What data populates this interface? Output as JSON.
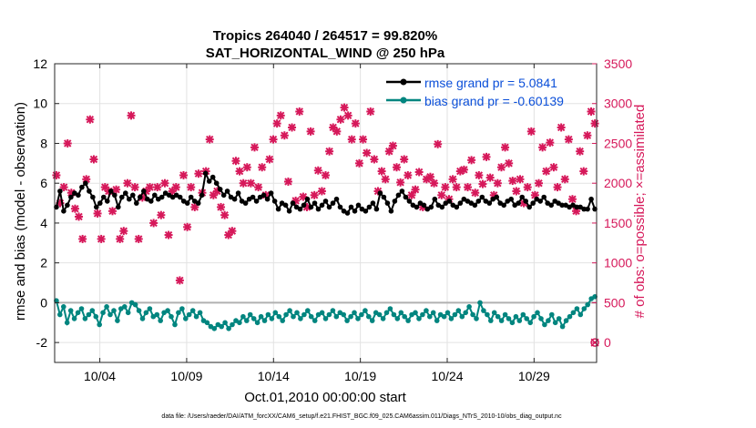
{
  "chart_data": {
    "type": "line",
    "title": "Tropics 264040 / 264517 = 99.820%",
    "subtitle": "SAT_HORIZONTAL_WIND @ 250 hPa",
    "xlabel": "Oct.01,2010 00:00:00 start",
    "ylabel_left": "rmse and bias (model - observation)",
    "ylabel_right": "# of obs: o=possible; ×=assimilated",
    "footer": "data file: /Users/raeder/DAI/ATM_forcXX/CAM6_setup/f.e21.FHIST_BGC.f09_025.CAM6assim.011/Diags_NTrS_2010-10/obs_diag_output.nc",
    "xlim": [
      1.4,
      32.6
    ],
    "ylim_left": [
      -3,
      12
    ],
    "ylim_right": [
      -250,
      3500
    ],
    "x_ticks": [
      4,
      9,
      14,
      19,
      24,
      29
    ],
    "x_tick_labels": [
      "10/04",
      "10/09",
      "10/14",
      "10/19",
      "10/24",
      "10/29"
    ],
    "y_ticks_left": [
      "-2",
      "0",
      "2",
      "4",
      "6",
      "8",
      "10",
      "12"
    ],
    "y_ticks_right": [
      "0",
      "500",
      "1000",
      "1500",
      "2000",
      "2500",
      "3000",
      "3500"
    ],
    "grid": true,
    "legend_position": "top-right",
    "series": [
      {
        "name": "rmse grand pr = 5.0841",
        "color": "#000000",
        "marker": "circle",
        "axis": "left",
        "values": [
          4.8,
          5.6,
          4.6,
          4.9,
          5.3,
          5.5,
          5.4,
          5.8,
          6.0,
          5.6,
          5.3,
          4.8,
          5.0,
          5.3,
          5.1,
          5.6,
          5.4,
          4.8,
          5.3,
          5.5,
          5.2,
          5.4,
          5.0,
          5.3,
          5.6,
          5.2,
          5.1,
          5.4,
          5.2,
          5.3,
          5.5,
          5.4,
          5.3,
          5.4,
          5.3,
          5.1,
          5.0,
          5.3,
          5.1,
          5.0,
          5.4,
          6.5,
          6.1,
          6.3,
          6.0,
          5.7,
          5.4,
          5.6,
          5.3,
          5.2,
          5.5,
          5.1,
          5.0,
          5.2,
          5.3,
          5.1,
          5.3,
          5.4,
          5.2,
          5.5,
          5.1,
          4.7,
          5.0,
          4.9,
          4.6,
          5.0,
          4.8,
          4.7,
          4.9,
          5.2,
          4.8,
          5.0,
          4.7,
          4.9,
          5.1,
          4.8,
          5.0,
          5.2,
          4.8,
          4.6,
          4.5,
          4.8,
          4.6,
          4.9,
          4.7,
          4.6,
          4.8,
          5.0,
          4.7,
          5.5,
          5.3,
          5.0,
          4.6,
          5.1,
          5.4,
          5.6,
          5.3,
          5.1,
          4.9,
          4.8,
          5.0,
          4.9,
          4.7,
          4.8,
          5.2,
          4.9,
          4.8,
          5.0,
          5.1,
          4.9,
          4.8,
          5.0,
          5.2,
          5.1,
          5.0,
          4.9,
          5.1,
          5.3,
          5.1,
          5.0,
          5.2,
          5.3,
          5.0,
          4.9,
          5.1,
          5.2,
          4.9,
          5.0,
          5.3,
          5.1,
          4.8,
          5.0,
          5.2,
          5.1,
          5.3,
          5.0,
          4.9,
          5.1,
          5.0,
          4.9,
          4.9,
          4.8,
          4.9,
          4.8,
          4.8,
          4.7,
          4.7,
          5.2,
          4.7
        ]
      },
      {
        "name": "bias grand pr = -0.60139",
        "color": "#00857f",
        "marker": "circle",
        "axis": "left",
        "values": [
          0.1,
          -0.6,
          -0.2,
          -1.0,
          -0.4,
          -0.8,
          -0.5,
          -0.3,
          -0.8,
          -0.6,
          -0.4,
          -0.7,
          -1.1,
          -0.5,
          -0.2,
          -0.6,
          -0.4,
          -0.9,
          -0.3,
          -0.2,
          -0.5,
          0.0,
          -0.1,
          -0.4,
          -0.8,
          -0.5,
          -0.3,
          -0.7,
          -0.6,
          -0.9,
          -0.5,
          -0.4,
          -0.7,
          -1.1,
          -0.5,
          -0.3,
          -0.8,
          -0.6,
          -0.4,
          -0.7,
          -0.5,
          -0.9,
          -1.0,
          -1.2,
          -1.3,
          -1.1,
          -1.2,
          -1.0,
          -1.3,
          -1.1,
          -0.9,
          -1.0,
          -0.7,
          -0.9,
          -0.6,
          -0.8,
          -1.0,
          -0.7,
          -0.9,
          -0.6,
          -0.8,
          -0.5,
          -0.7,
          -0.9,
          -0.6,
          -0.4,
          -0.7,
          -0.5,
          -0.8,
          -0.6,
          -0.4,
          -0.7,
          -0.9,
          -0.6,
          -0.5,
          -0.8,
          -0.6,
          -0.4,
          -0.7,
          -0.5,
          -0.6,
          -0.9,
          -0.7,
          -0.5,
          -0.8,
          -0.6,
          -0.4,
          -0.7,
          -0.9,
          -0.5,
          -0.6,
          -0.8,
          -0.5,
          -0.3,
          -0.6,
          -0.8,
          -0.5,
          -0.7,
          -0.9,
          -0.6,
          -0.5,
          -0.8,
          -0.6,
          -0.4,
          -0.7,
          -0.5,
          -0.9,
          -0.6,
          -0.7,
          -0.5,
          -0.8,
          -0.6,
          -0.4,
          -0.7,
          -0.5,
          -0.2,
          -0.6,
          -0.8,
          0.0,
          -0.4,
          -0.6,
          -0.9,
          -0.5,
          -0.7,
          -0.9,
          -0.6,
          -0.8,
          -1.0,
          -0.7,
          -0.9,
          -0.6,
          -0.8,
          -1.0,
          -0.7,
          -0.5,
          -0.8,
          -1.1,
          -0.9,
          -0.6,
          -1.0,
          -0.8,
          -1.2,
          -0.9,
          -0.7,
          -0.5,
          -0.3,
          -0.6,
          -0.3,
          -0.1,
          0.2,
          0.3
        ]
      },
      {
        "name": "obs assimilated",
        "color": "#d6185a",
        "marker": "x",
        "axis": "right",
        "values": [
          2100,
          1750,
          1950,
          2500,
          1880,
          1680,
          1580,
          1300,
          2050,
          2800,
          2300,
          1620,
          1300,
          1950,
          1900,
          1650,
          1920,
          1300,
          1400,
          2000,
          2850,
          1950,
          1300,
          1820,
          1900,
          1950,
          1500,
          1950,
          1600,
          2000,
          1350,
          1900,
          1950,
          780,
          2100,
          1450,
          1950,
          1700,
          2120,
          1880,
          2150,
          2550,
          1850,
          1900,
          1700,
          1600,
          1350,
          1400,
          2280,
          2150,
          2000,
          2200,
          2000,
          2450,
          1950,
          2200,
          1850,
          2300,
          2550,
          2750,
          2850,
          2600,
          2020,
          2700,
          1780,
          2900,
          1830,
          1700,
          2650,
          1850,
          2160,
          1900,
          2100,
          2400,
          2700,
          2650,
          2800,
          2950,
          2850,
          2550,
          2750,
          2250,
          2550,
          2380,
          2900,
          2300,
          1900,
          2150,
          2050,
          2400,
          2470,
          2200,
          2010,
          2300,
          2100,
          1850,
          1920,
          2140,
          1700,
          2050,
          2080,
          2000,
          2490,
          1850,
          1950,
          1800,
          2050,
          1950,
          2150,
          2170,
          1950,
          2290,
          1880,
          2100,
          1990,
          2330,
          2070,
          1850,
          2000,
          2200,
          2450,
          2250,
          2030,
          1900,
          2050,
          1750,
          1950,
          2650,
          1850,
          2000,
          2450,
          2150,
          2510,
          2200,
          1950,
          2700,
          2050,
          2550,
          1800,
          1650,
          2400,
          2150,
          2600,
          2900,
          2750
        ]
      },
      {
        "name": "obs possible",
        "color": "#d6185a",
        "marker": "o",
        "axis": "right",
        "points": [
          [
            32.5,
            0
          ]
        ]
      }
    ],
    "colors": {
      "rmse": "#000000",
      "bias": "#00857f",
      "obs": "#d6185a",
      "legend_text": "#0b4fd9",
      "zero_line": "#b0b0b0"
    }
  }
}
